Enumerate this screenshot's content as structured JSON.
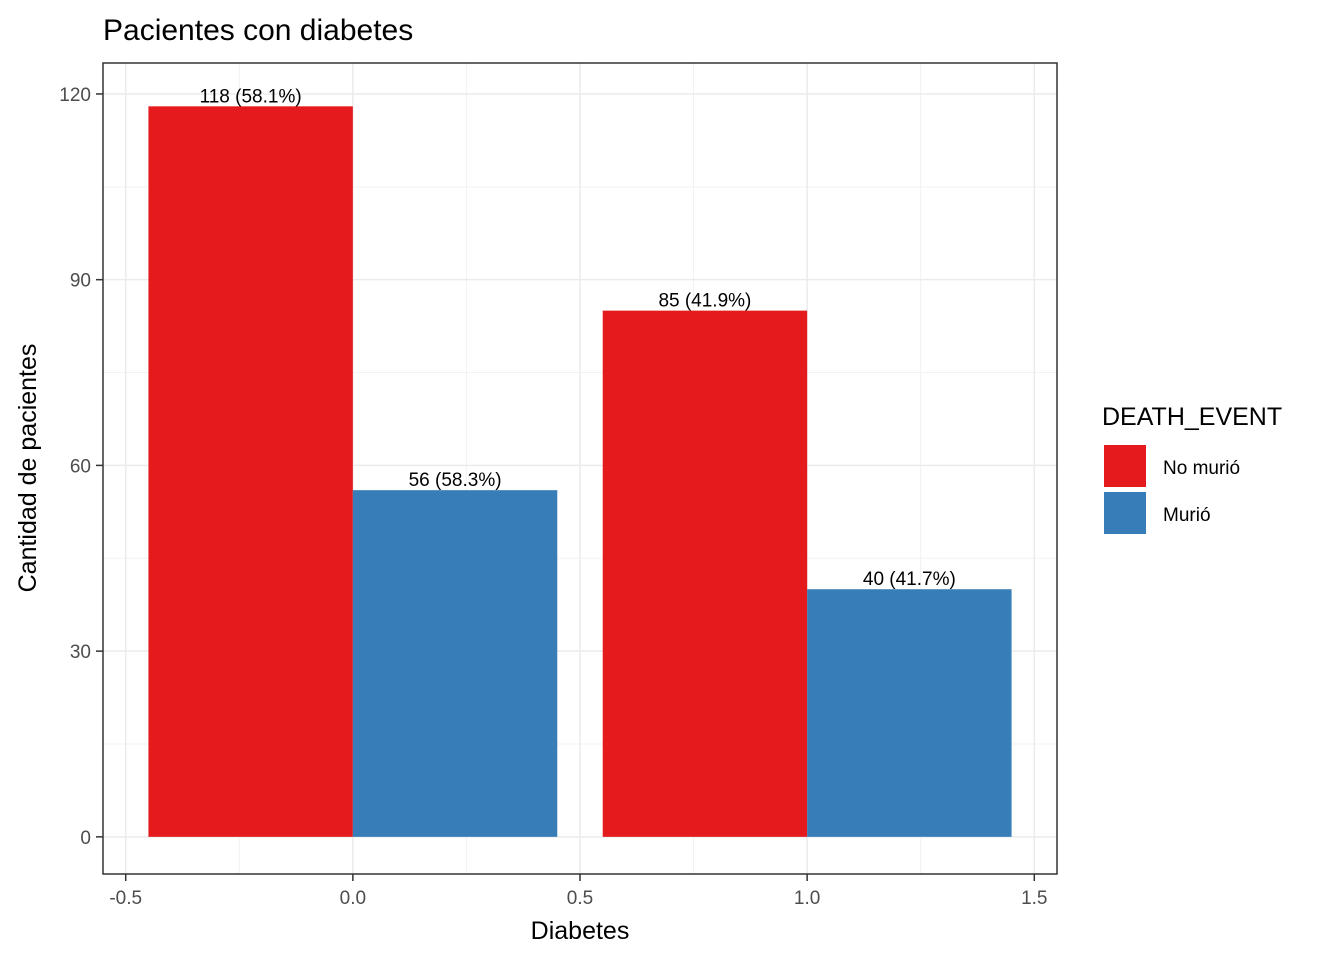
{
  "chart_data": {
    "type": "bar",
    "title": "Pacientes con diabetes",
    "xlabel": "Diabetes",
    "ylabel": "Cantidad de pacientes",
    "x_ticks": [
      -0.5,
      0.0,
      0.5,
      1.0,
      1.5
    ],
    "x_tick_labels": [
      "-0.5",
      "0.0",
      "0.5",
      "1.0",
      "1.5"
    ],
    "y_ticks": [
      0,
      30,
      60,
      90,
      120
    ],
    "y_tick_labels": [
      "0",
      "30",
      "60",
      "90",
      "120"
    ],
    "xlim": [
      -0.55,
      1.55
    ],
    "ylim": [
      -6,
      125
    ],
    "categories": [
      0,
      1
    ],
    "bar_width": 0.9,
    "grid": true,
    "legend_position": "right",
    "legend_title": "DEATH_EVENT",
    "series": [
      {
        "name": "No murió",
        "color": "#E41A1C",
        "values": [
          118,
          85
        ],
        "labels": [
          "118 (58.1%)",
          "85 (41.9%)"
        ]
      },
      {
        "name": "Murió",
        "color": "#377EB8",
        "values": [
          56,
          40
        ],
        "labels": [
          "56 (58.3%)",
          "40 (41.7%)"
        ]
      }
    ]
  }
}
